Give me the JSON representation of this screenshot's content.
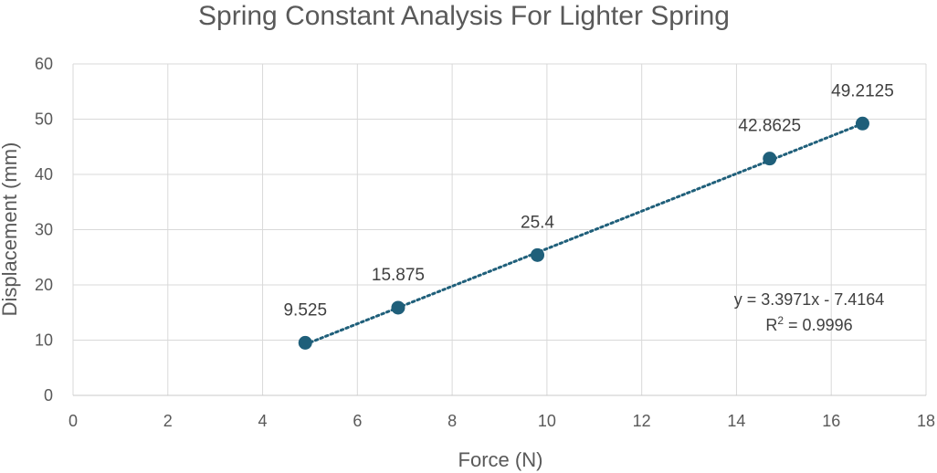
{
  "chart_data": {
    "type": "scatter",
    "title": "Spring Constant Analysis For Lighter Spring",
    "xlabel": "Force (N)",
    "ylabel": "Displacement (mm)",
    "xlim": [
      0,
      18
    ],
    "ylim": [
      0,
      60
    ],
    "xticks": [
      0,
      2,
      4,
      6,
      8,
      10,
      12,
      14,
      16,
      18
    ],
    "yticks": [
      0,
      10,
      20,
      30,
      40,
      50,
      60
    ],
    "grid": true,
    "legend": "none",
    "series": [
      {
        "points": [
          {
            "x": 4.9,
            "y": 9.525,
            "label": "9.525"
          },
          {
            "x": 6.86,
            "y": 15.875,
            "label": "15.875"
          },
          {
            "x": 9.8,
            "y": 25.4,
            "label": "25.4"
          },
          {
            "x": 14.7,
            "y": 42.8625,
            "label": "42.8625"
          },
          {
            "x": 16.66,
            "y": 49.2125,
            "label": "49.2125"
          }
        ],
        "color": "#1f5f7a"
      }
    ],
    "trendline": {
      "type": "linear",
      "slope": 3.3971,
      "intercept": -7.4164,
      "r_squared": 0.9996,
      "style": "dotted",
      "color": "#1f5f7a",
      "equation_text": "y = 3.3971x - 7.4164",
      "r2_prefix": "R",
      "r2_superscript": "2",
      "r2_value_text": " = 0.9996"
    }
  }
}
